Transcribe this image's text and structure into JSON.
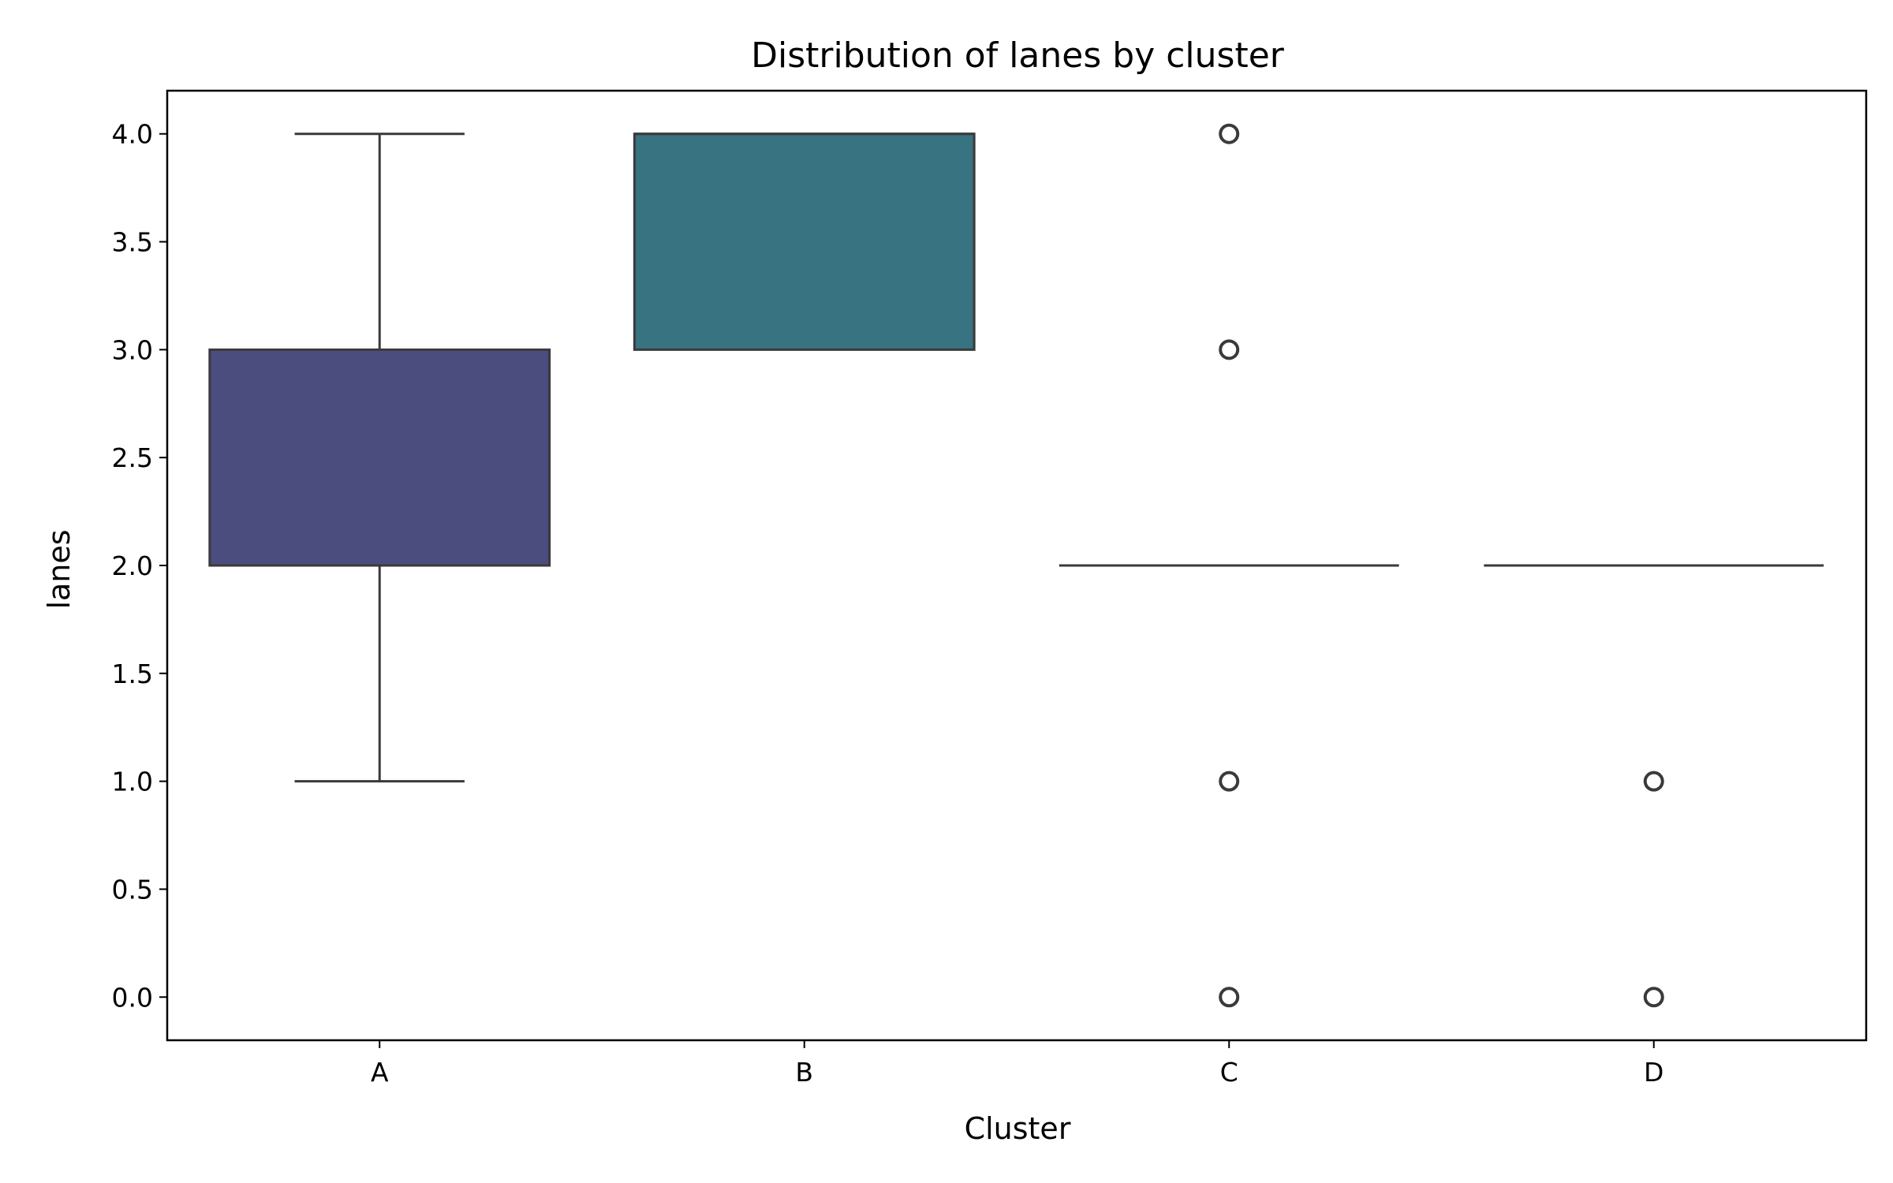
{
  "chart_data": {
    "type": "box",
    "title": "Distribution of lanes by cluster",
    "xlabel": "Cluster",
    "ylabel": "lanes",
    "categories": [
      "A",
      "B",
      "C",
      "D"
    ],
    "ylim": [
      -0.2,
      4.2
    ],
    "yticks": [
      "0.0",
      "0.5",
      "1.0",
      "1.5",
      "2.0",
      "2.5",
      "3.0",
      "3.5",
      "4.0"
    ],
    "grid": false,
    "legend": "none",
    "boxes": [
      {
        "category": "A",
        "whisker_low": 1.0,
        "q1": 2.0,
        "median": 2.0,
        "q3": 3.0,
        "whisker_high": 4.0,
        "outliers": [],
        "color": "#4a4d7e"
      },
      {
        "category": "B",
        "whisker_low": 3.0,
        "q1": 3.0,
        "median": 4.0,
        "q3": 4.0,
        "whisker_high": 4.0,
        "outliers": [],
        "color": "#377380"
      },
      {
        "category": "C",
        "whisker_low": 2.0,
        "q1": 2.0,
        "median": 2.0,
        "q3": 2.0,
        "whisker_high": 2.0,
        "outliers": [
          4.0,
          3.0,
          1.0,
          0.0
        ],
        "color": "#2e9b8a"
      },
      {
        "category": "D",
        "whisker_low": 2.0,
        "q1": 2.0,
        "median": 2.0,
        "q3": 2.0,
        "whisker_high": 2.0,
        "outliers": [
          1.0,
          0.0
        ],
        "color": "#5cc26a"
      }
    ],
    "line_color": "#3a3a3a"
  }
}
